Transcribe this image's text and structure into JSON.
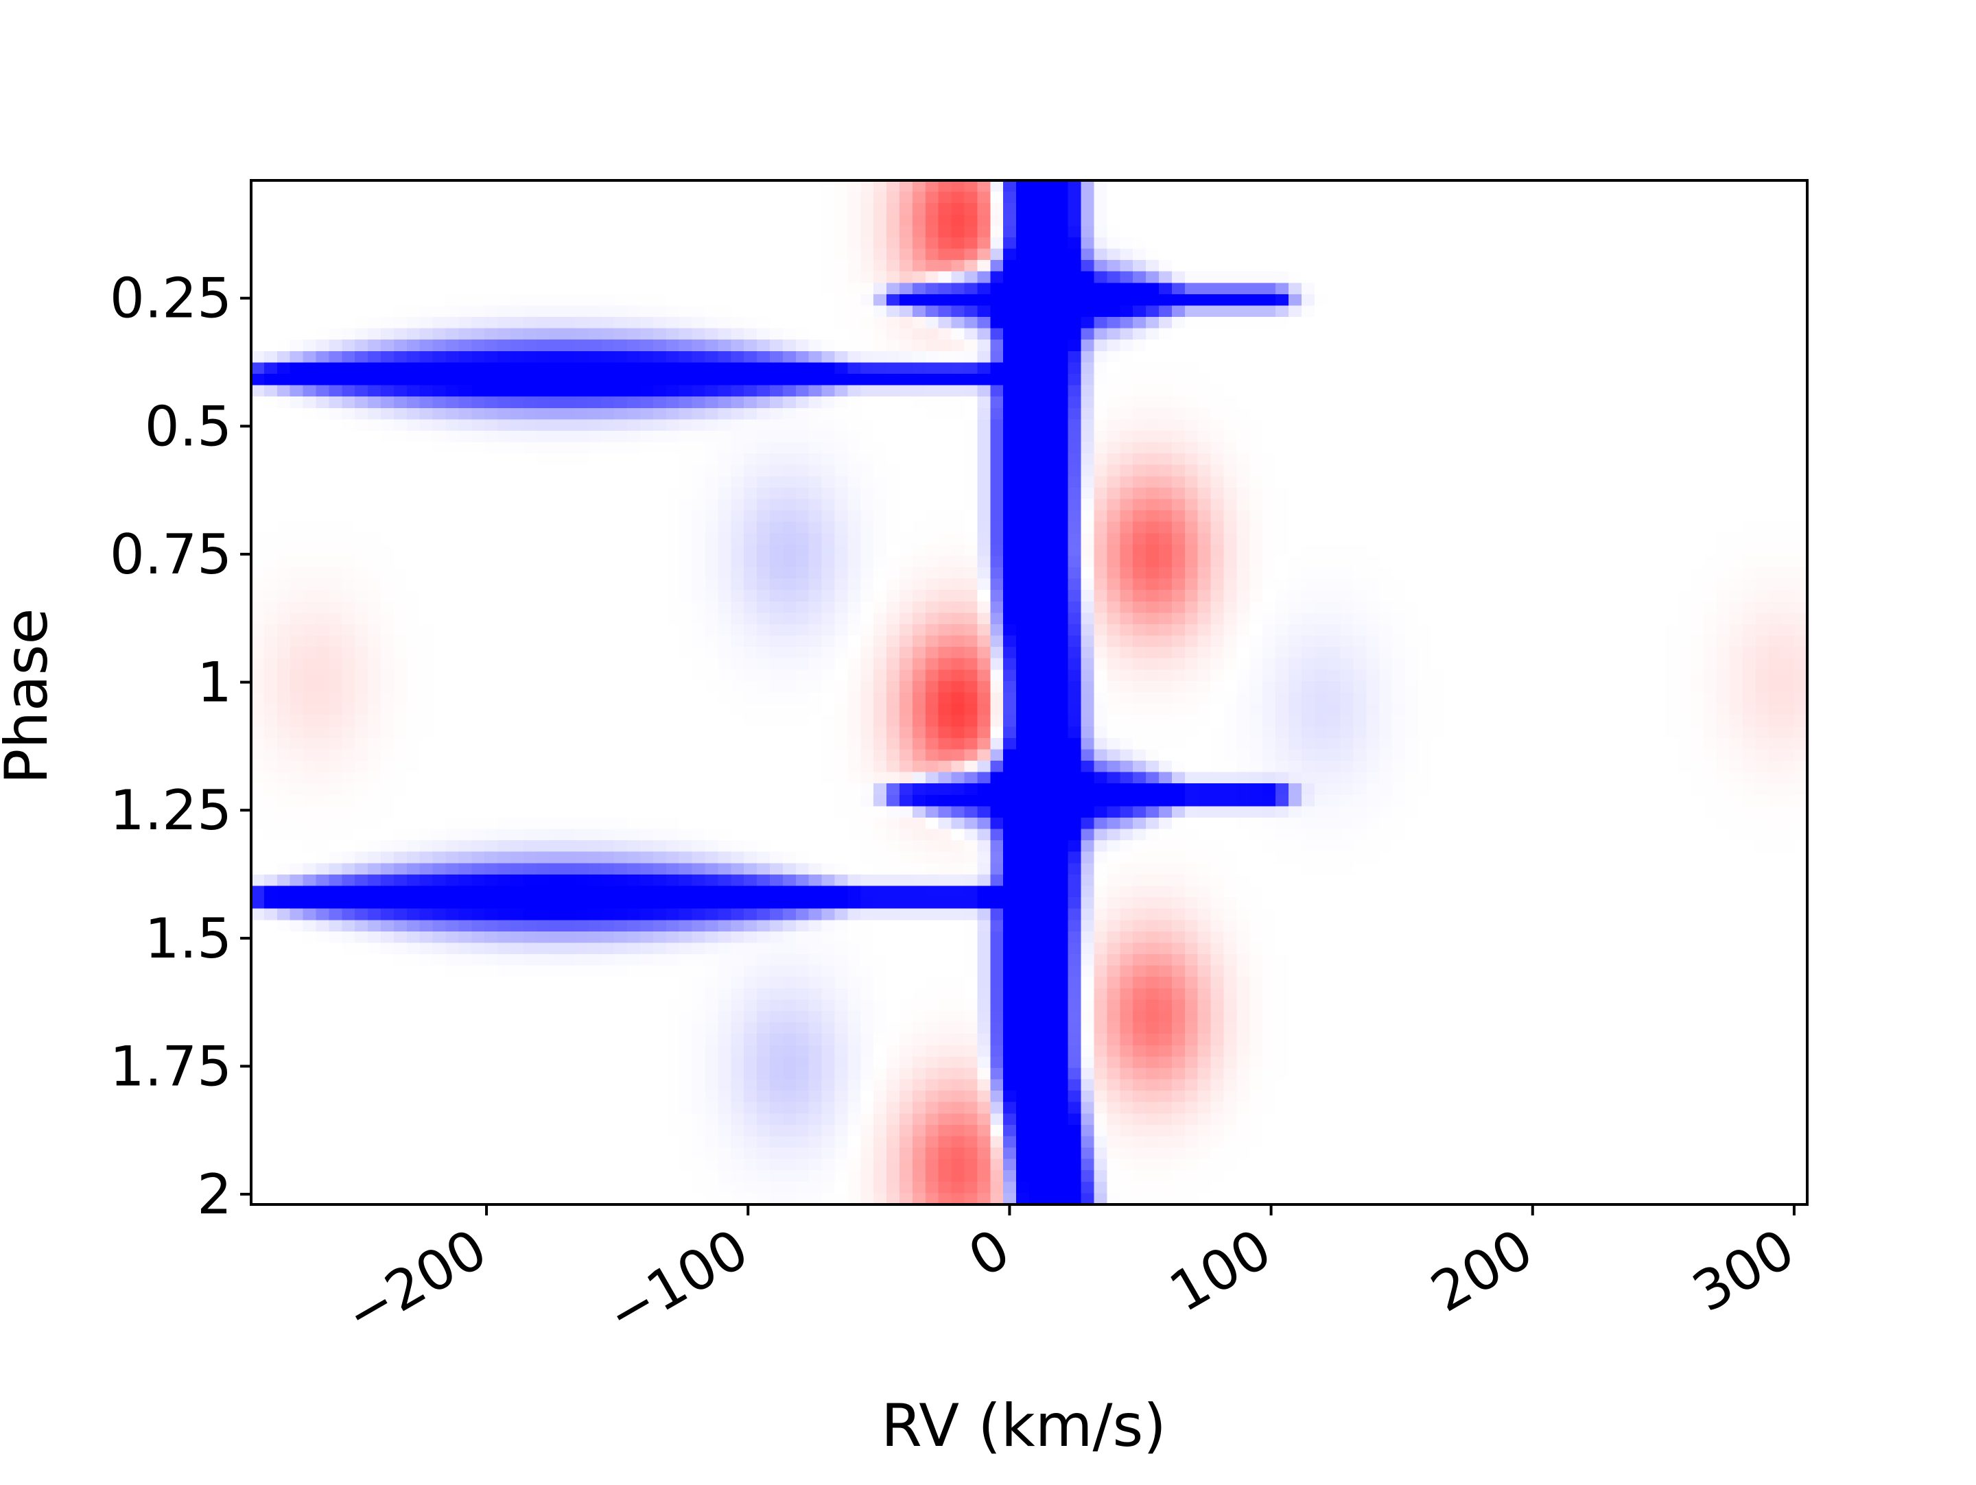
{
  "chart_data": {
    "type": "heatmap",
    "title": "",
    "xlabel": "RV (km/s)",
    "ylabel": "Phase",
    "xlim": [
      -290,
      305
    ],
    "ylim": [
      2.02,
      0.02
    ],
    "x_ticks": [
      {
        "value": -200,
        "label": "−200"
      },
      {
        "value": -100,
        "label": "−100"
      },
      {
        "value": 0,
        "label": "0"
      },
      {
        "value": 100,
        "label": "100"
      },
      {
        "value": 200,
        "label": "200"
      },
      {
        "value": 300,
        "label": "300"
      }
    ],
    "y_ticks": [
      {
        "value": 0.25,
        "label": "0.25"
      },
      {
        "value": 0.5,
        "label": "0.5"
      },
      {
        "value": 0.75,
        "label": "0.75"
      },
      {
        "value": 1,
        "label": "1"
      },
      {
        "value": 1.25,
        "label": "1.25"
      },
      {
        "value": 1.5,
        "label": "1.5"
      },
      {
        "value": 1.75,
        "label": "1.75"
      },
      {
        "value": 2,
        "label": "2"
      }
    ],
    "colormap": "bwr",
    "colors": {
      "negative": "#0000ff",
      "zero": "#ffffff",
      "positive": "#ff0000"
    },
    "features": [
      {
        "kind": "absorption",
        "shape": "vertical-band",
        "x_center_at_phase": [
          [
            0.0,
            12
          ],
          [
            0.25,
            12
          ],
          [
            0.5,
            10
          ],
          [
            0.75,
            10
          ],
          [
            1.0,
            12
          ],
          [
            1.25,
            12
          ],
          [
            1.5,
            10
          ],
          [
            1.75,
            10
          ],
          [
            2.0,
            16
          ]
        ],
        "half_width": 16,
        "strength": -1.0
      },
      {
        "kind": "absorption",
        "shape": "horizontal-streak",
        "phase": 0.25,
        "x_range": [
          -40,
          100
        ],
        "strength": -1.0
      },
      {
        "kind": "absorption",
        "shape": "horizontal-streak",
        "phase": 0.4,
        "x_range": [
          -285,
          10
        ],
        "strength": -1.0
      },
      {
        "kind": "absorption",
        "shape": "horizontal-streak",
        "phase": 1.22,
        "x_range": [
          -40,
          100
        ],
        "strength": -1.0
      },
      {
        "kind": "absorption",
        "shape": "horizontal-streak",
        "phase": 1.42,
        "x_range": [
          -285,
          10
        ],
        "strength": -1.0
      },
      {
        "kind": "emission",
        "shape": "blob",
        "x": -20,
        "phase": 0.1,
        "strength": 0.7
      },
      {
        "kind": "emission",
        "shape": "blob",
        "x": -20,
        "phase": 1.05,
        "strength": 0.75
      },
      {
        "kind": "emission",
        "shape": "blob",
        "x": -20,
        "phase": 1.95,
        "strength": 0.6
      },
      {
        "kind": "emission",
        "shape": "blob",
        "x": 55,
        "phase": 0.75,
        "strength": 0.6
      },
      {
        "kind": "emission",
        "shape": "blob",
        "x": 55,
        "phase": 1.65,
        "strength": 0.55
      },
      {
        "kind": "absorption",
        "shape": "blob",
        "x": -85,
        "phase": 0.75,
        "strength": -0.2
      },
      {
        "kind": "absorption",
        "shape": "blob",
        "x": -85,
        "phase": 1.75,
        "strength": -0.2
      },
      {
        "kind": "absorption",
        "shape": "blob",
        "x": 120,
        "phase": 1.05,
        "strength": -0.12
      },
      {
        "kind": "emission",
        "shape": "blob",
        "x": -265,
        "phase": 1.0,
        "strength": 0.12
      },
      {
        "kind": "emission",
        "shape": "blob",
        "x": 295,
        "phase": 1.0,
        "strength": 0.12
      }
    ]
  }
}
